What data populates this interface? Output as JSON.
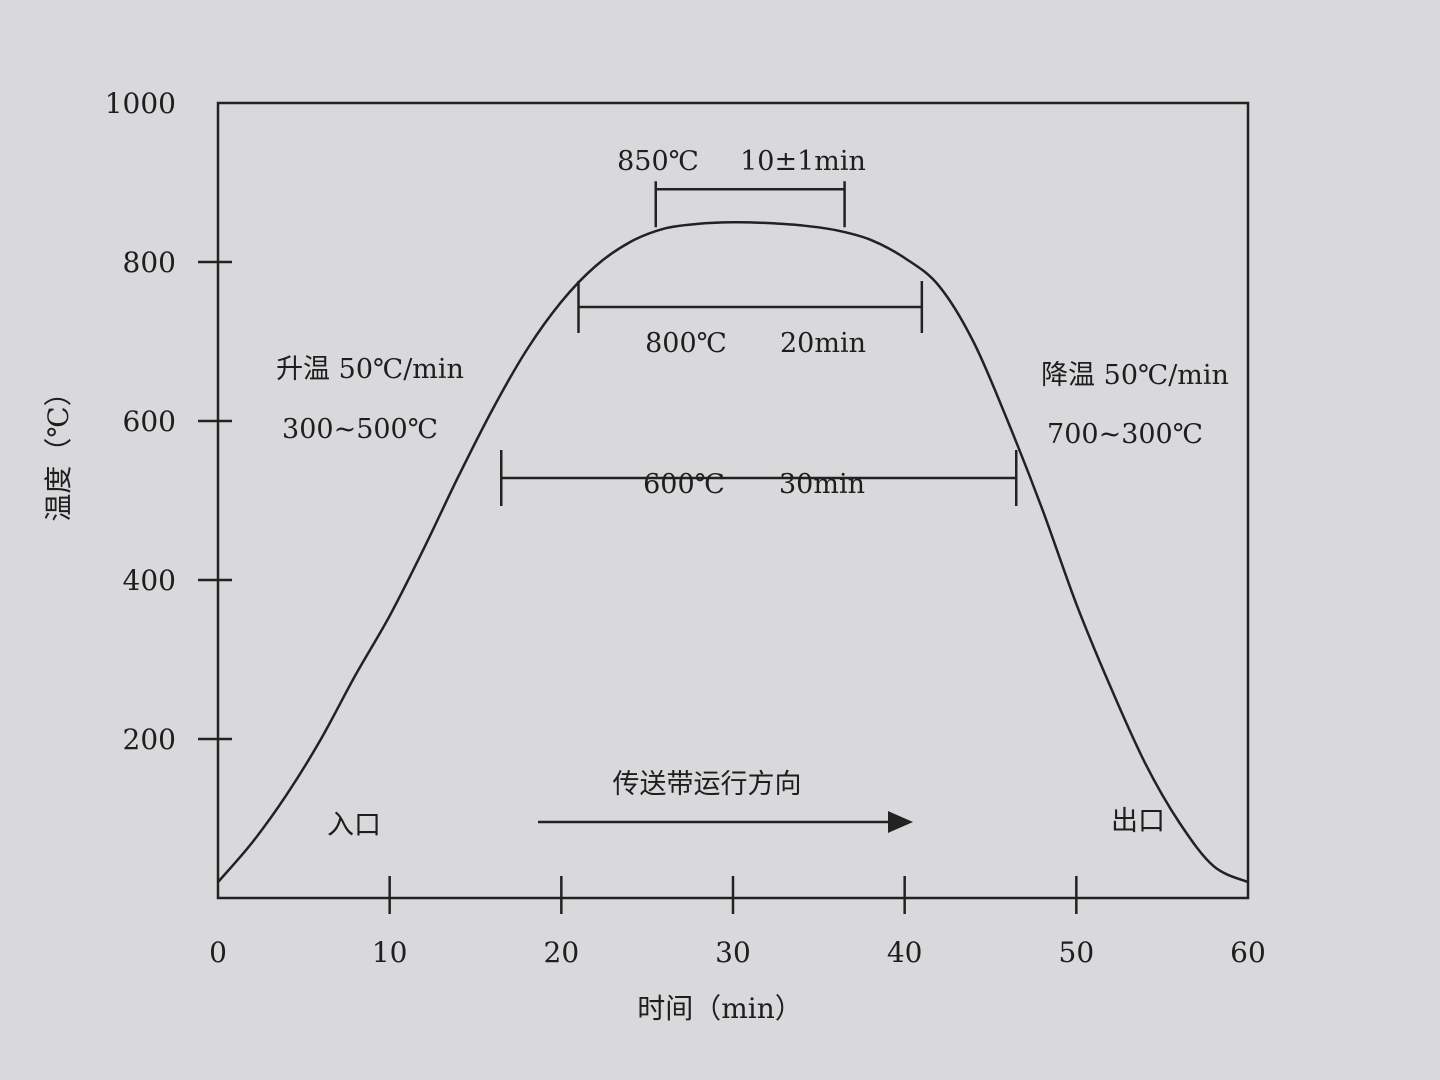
{
  "chart_data": {
    "type": "line",
    "xlabel": "时间（min）",
    "ylabel": "温度（℃）",
    "xlim": [
      0,
      60
    ],
    "ylim": [
      0,
      1000
    ],
    "x_ticks": [
      "0",
      "10",
      "20",
      "30",
      "40",
      "50",
      "60"
    ],
    "y_ticks": [
      "200",
      "400",
      "600",
      "800",
      "1000"
    ],
    "grid": false,
    "series": [
      {
        "x": [
          0,
          2,
          4,
          6,
          8,
          10,
          12,
          14,
          16,
          18,
          20,
          22,
          24,
          26,
          28,
          30,
          32,
          34,
          36,
          38,
          40,
          42,
          44,
          46,
          48,
          50,
          52,
          54,
          56,
          58,
          60
        ],
        "values": [
          20,
          70,
          130,
          200,
          280,
          355,
          440,
          530,
          615,
          690,
          750,
          795,
          825,
          842,
          848,
          850,
          849,
          846,
          840,
          828,
          805,
          770,
          700,
          600,
          490,
          370,
          265,
          170,
          95,
          40,
          20
        ]
      }
    ],
    "annotations": {
      "peak_temp": "850℃",
      "peak_time": "10±1min",
      "band_800_temp": "800℃",
      "band_800_time": "20min",
      "band_600_temp": "600℃",
      "band_600_time": "30min",
      "heating_rate": "升温 50℃/min",
      "heating_range": "300~500℃",
      "cooling_rate": "降温 50℃/min",
      "cooling_range": "700~300℃",
      "direction": "传送带运行方向",
      "entrance": "入口",
      "exit": "出口"
    },
    "brackets": [
      {
        "from_min": 25.5,
        "to_min": 36.5,
        "level": 850
      },
      {
        "from_min": 21,
        "to_min": 41,
        "level": 800
      },
      {
        "from_min": 16.5,
        "to_min": 46.5,
        "level": 600
      }
    ]
  }
}
